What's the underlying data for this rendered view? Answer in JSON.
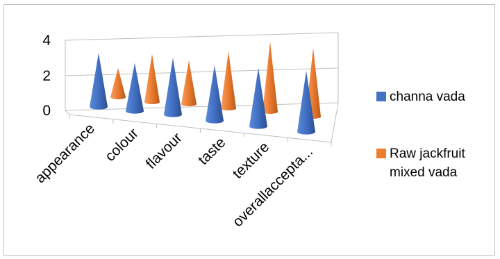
{
  "colors": {
    "channa": "#4472C4",
    "jackfruit": "#ED7D31"
  },
  "chart_data": {
    "type": "bar",
    "subtype": "3d-cone",
    "categories": [
      "appearance",
      "colour",
      "flavour",
      "taste",
      "texture",
      "overallaccepta..."
    ],
    "series": [
      {
        "name": "channa vada",
        "values": [
          3.7,
          3.3,
          3.9,
          3.8,
          4.0,
          4.2
        ]
      },
      {
        "name": "Raw jackfruit mixed vada",
        "values": [
          2.0,
          3.3,
          3.0,
          3.9,
          4.8,
          4.7
        ]
      }
    ],
    "ylim": [
      0,
      4
    ],
    "yticks": [
      "0",
      "2",
      "4"
    ],
    "grid": true,
    "legend": "right"
  }
}
